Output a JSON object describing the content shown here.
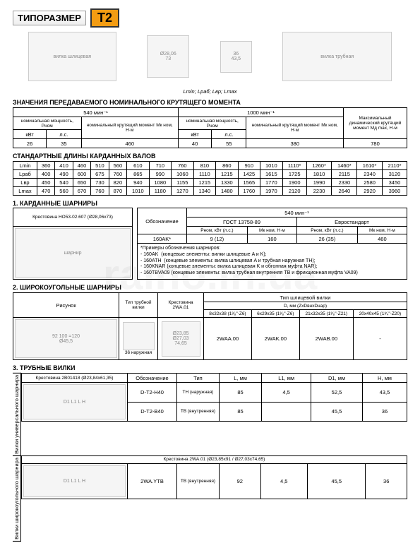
{
  "header": {
    "type_label": "ТИПОРАЗМЕР",
    "badge": "T2"
  },
  "dims_caption": "Lmin; Lраб; Lвр; Lmax",
  "torque": {
    "title": "ЗНАЧЕНИЯ ПЕРЕДАВАЕМОГО НОМИНАЛЬНОГО КРУТЯЩЕГО МОМЕНТА",
    "h_540": "540 мин⁻¹",
    "h_1000": "1000 мин⁻¹",
    "h_max": "Максимальный динамический крутящий момент Mд max, Н·м",
    "nom_pow": "номинальная мощность, Pном",
    "nom_tq": "номинальный крутящий момент Mк ном, Н·м",
    "kw": "кВт",
    "hp": "л.с.",
    "v": {
      "kw1": "26",
      "hp1": "35",
      "m1": "460",
      "kw2": "40",
      "hp2": "55",
      "m2": "380",
      "max": "780"
    }
  },
  "lengths": {
    "title": "СТАНДАРТНЫЕ ДЛИНЫ КАРДАННЫХ ВАЛОВ",
    "rows": [
      "Lmin",
      "Lраб",
      "Lвр",
      "Lmax"
    ],
    "cols": [
      "360",
      "410",
      "460",
      "510",
      "560",
      "610",
      "710",
      "760",
      "810",
      "860",
      "910",
      "1010",
      "1110*",
      "1260*",
      "1460*",
      "1610*",
      "2110*"
    ],
    "data": [
      [
        "400",
        "490",
        "600",
        "675",
        "760",
        "865",
        "990",
        "1060",
        "1110",
        "1215",
        "1425",
        "1615",
        "1725",
        "1810",
        "2115",
        "2340",
        "3120"
      ],
      [
        "450",
        "540",
        "650",
        "730",
        "820",
        "940",
        "1080",
        "1155",
        "1215",
        "1330",
        "1565",
        "1770",
        "1900",
        "1990",
        "2330",
        "2580",
        "3450"
      ],
      [
        "470",
        "560",
        "670",
        "760",
        "870",
        "1010",
        "1180",
        "1270",
        "1340",
        "1480",
        "1760",
        "1970",
        "2120",
        "2230",
        "2640",
        "2920",
        "3960"
      ]
    ]
  },
  "sec1": {
    "title": "1. КАРДАННЫЕ ШАРНИРЫ",
    "cross_label": "Крестовина НО53-02.607 (Ø28,06x73)",
    "h_des": "Обозначение",
    "h_540": "540 мин⁻¹",
    "h_gost": "ГОСТ 13758-89",
    "h_euro": "Евростандарт",
    "h_pkw": "Pном, кВт (л.с.)",
    "h_mnm": "Mк ном, Н·м",
    "des": "160AK*",
    "g_p": "9 (12)",
    "g_m": "160",
    "e_p": "26 (35)",
    "e_m": "460",
    "notes_head": "*Примеры обозначения шарниров:",
    "n1": "- 160AK",
    "n1d": "(концевые элементы: вилки шлицевые A и K);",
    "n2": "- 160ATH",
    "n2d": "(концевые элементы: вилка шлицевая A и трубная наружная TH);",
    "n3": "- 160KNAR",
    "n3d": "(концевые элементы: вилка шлицевая K и обгонная муфта NAR);",
    "n4": "- 160TBVA09",
    "n4d": "(концевые элементы: вилка трубная внутренняя TB и фрикционная муфта VA09)"
  },
  "sec2": {
    "title": "2. ШИРОКОУГОЛЬНЫЕ ШАРНИРЫ",
    "h_pic": "Рисунок",
    "h_tube": "Тип трубной вилки",
    "h_cross": "Крестовина 2WA.01",
    "h_fork": "Тип шлицевой вилки",
    "h_d": "D, мм (ZxDвнхDнар)",
    "forks": [
      "8x32x38 (1³⁄₈\"-Z6)",
      "6x29x35 (1³⁄₈\"-Z6)",
      "21x32x35 (1³⁄₈\"-Z21)",
      "20x40x45 (1³⁄₄\"-Z20)"
    ],
    "tube_val": "36 наружная",
    "vals": [
      "2WAA.00",
      "2WAK.00",
      "2WAB.00",
      "-"
    ]
  },
  "sec3": {
    "title": "3. ТРУБНЫЕ ВИЛКИ",
    "h_des": "Обозначение",
    "h_type": "Тип",
    "h_l": "L, мм",
    "h_l1": "L1, мм",
    "h_d1": "D1, мм",
    "h_h": "H, мм",
    "group1_label": "Вилки универсального шарнира",
    "group1_cross": "Крестовина 2B01418 (Ø23,84x61,35)",
    "r1": {
      "des": "D-T2-H40",
      "type": "TH (наружная)",
      "l": "85",
      "l1": "4,5",
      "d1": "52,5",
      "h": "43,5"
    },
    "r2": {
      "des": "D-T2-B40",
      "type": "TB (внутренняя)",
      "l": "85",
      "l1": " ",
      "d1": "45,5",
      "h": "36"
    },
    "group2_label": "Вилки широкоугольного шарнира",
    "group2_cross": "Крестовина 2WA.01 (Ø23,85x91 / Ø27,03x74,65)",
    "r3": {
      "des": "2WA.YTB",
      "type": "TB (внутренняя)",
      "l": "92",
      "l1": "4,5",
      "d1": "45,5",
      "h": "36"
    }
  }
}
